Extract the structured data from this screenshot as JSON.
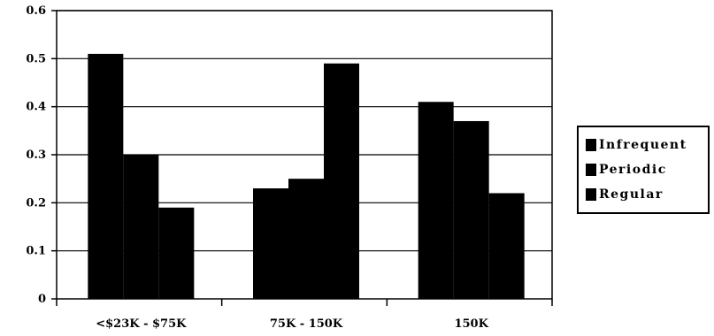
{
  "chart_data": {
    "type": "bar",
    "categories": [
      "<$23K - $75K",
      "75K - 150K",
      "150K"
    ],
    "series": [
      {
        "name": "Infrequent",
        "values": [
          0.51,
          0.23,
          0.41
        ]
      },
      {
        "name": "Periodic",
        "values": [
          0.3,
          0.25,
          0.37
        ]
      },
      {
        "name": "Regular",
        "values": [
          0.19,
          0.49,
          0.22
        ]
      }
    ],
    "ylim": [
      0,
      0.6
    ],
    "yticks": [
      "0",
      "0.1",
      "0.2",
      "0.3",
      "0.4",
      "0.5",
      "0.6"
    ],
    "grid": true,
    "legend_position": "right",
    "bar_color": "#000000",
    "title": "",
    "xlabel": "",
    "ylabel": ""
  }
}
